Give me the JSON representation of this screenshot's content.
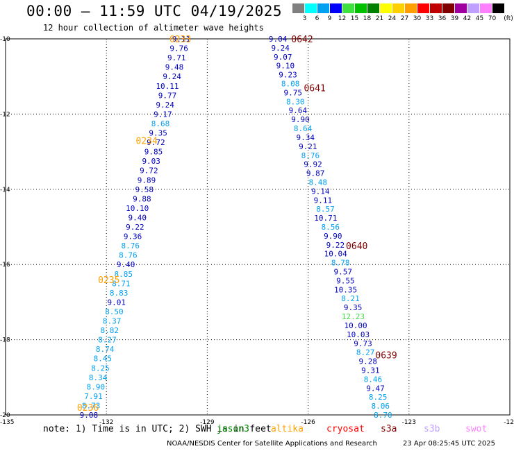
{
  "title": "00:00 – 11:59 UTC 04/19/2025",
  "subtitle": "12 hour collection of altimeter wave heights",
  "colorbar": {
    "bins": [
      {
        "label": "3",
        "color": "#808080"
      },
      {
        "label": "6",
        "color": "#00ffff"
      },
      {
        "label": "9",
        "color": "#00a0f0"
      },
      {
        "label": "12",
        "color": "#0000ff"
      },
      {
        "label": "15",
        "color": "#40e040"
      },
      {
        "label": "18",
        "color": "#00c000"
      },
      {
        "label": "21",
        "color": "#008000"
      },
      {
        "label": "24",
        "color": "#ffff00"
      },
      {
        "label": "27",
        "color": "#ffd000"
      },
      {
        "label": "30",
        "color": "#ffa000"
      },
      {
        "label": "33",
        "color": "#ff0000"
      },
      {
        "label": "36",
        "color": "#c00000"
      },
      {
        "label": "39",
        "color": "#800000"
      },
      {
        "label": "42",
        "color": "#a000a0"
      },
      {
        "label": "45",
        "color": "#c0a0ff"
      },
      {
        "label": "70",
        "color": "#ff80ff"
      },
      {
        "label": "",
        "color": "#000000"
      }
    ],
    "unit": "(ft)"
  },
  "map": {
    "lon_range": [
      -135,
      -123
    ],
    "lat_range": [
      -20,
      -10
    ],
    "lon_ticks": [
      "-135",
      "-132",
      "-129",
      "-126",
      "-123",
      "-12"
    ],
    "lat_ticks": [
      "-10",
      "-12",
      "-14",
      "-16",
      "-18",
      "-20"
    ],
    "track_a": {
      "pass_labels": [
        {
          "text": "0233",
          "lat": -10.0,
          "lon": -131.1
        },
        {
          "text": "0234",
          "lat": -12.7,
          "lon": -131.9
        },
        {
          "text": "0235",
          "lat": -16.4,
          "lon": -132.8
        },
        {
          "text": "0236",
          "lat": -19.8,
          "lon": -133.3
        }
      ],
      "values": [
        {
          "v": "9.11",
          "c": "#0000c0"
        },
        {
          "v": "9.76",
          "c": "#0000c0"
        },
        {
          "v": "9.71",
          "c": "#0000c0"
        },
        {
          "v": "9.48",
          "c": "#0000c0"
        },
        {
          "v": "9.24",
          "c": "#0000c0"
        },
        {
          "v": "10.11",
          "c": "#0000c0"
        },
        {
          "v": "9.77",
          "c": "#0000c0"
        },
        {
          "v": "9.24",
          "c": "#0000c0"
        },
        {
          "v": "9.17",
          "c": "#0000c0"
        },
        {
          "v": "8.68",
          "c": "#00a0f0"
        },
        {
          "v": "9.35",
          "c": "#0000c0"
        },
        {
          "v": "9.72",
          "c": "#0000c0"
        },
        {
          "v": "9.85",
          "c": "#0000c0"
        },
        {
          "v": "9.03",
          "c": "#0000c0"
        },
        {
          "v": "9.72",
          "c": "#0000c0"
        },
        {
          "v": "9.89",
          "c": "#0000c0"
        },
        {
          "v": "9.58",
          "c": "#0000c0"
        },
        {
          "v": "9.88",
          "c": "#0000c0"
        },
        {
          "v": "10.10",
          "c": "#0000c0"
        },
        {
          "v": "9.40",
          "c": "#0000c0"
        },
        {
          "v": "9.22",
          "c": "#0000c0"
        },
        {
          "v": "9.36",
          "c": "#0000c0"
        },
        {
          "v": "8.76",
          "c": "#00a0f0"
        },
        {
          "v": "8.76",
          "c": "#00a0f0"
        },
        {
          "v": "9.40",
          "c": "#0000c0"
        },
        {
          "v": "8.85",
          "c": "#00a0f0"
        },
        {
          "v": "8.71",
          "c": "#00a0f0"
        },
        {
          "v": "8.83",
          "c": "#00a0f0"
        },
        {
          "v": "9.01",
          "c": "#0000c0"
        },
        {
          "v": "8.50",
          "c": "#00a0f0"
        },
        {
          "v": "8.37",
          "c": "#00a0f0"
        },
        {
          "v": "8.82",
          "c": "#00a0f0"
        },
        {
          "v": "8.27",
          "c": "#00a0f0"
        },
        {
          "v": "8.74",
          "c": "#00a0f0"
        },
        {
          "v": "8.45",
          "c": "#00a0f0"
        },
        {
          "v": "8.25",
          "c": "#00a0f0"
        },
        {
          "v": "8.34",
          "c": "#00a0f0"
        },
        {
          "v": "8.90",
          "c": "#00a0f0"
        },
        {
          "v": "7.91",
          "c": "#00a0f0"
        },
        {
          "v": "8.73",
          "c": "#00a0f0"
        },
        {
          "v": "9.08",
          "c": "#0000c0"
        }
      ]
    },
    "track_b": {
      "pass_labels": [
        {
          "text": "0642",
          "lat": -10.0,
          "lon": -128.2
        },
        {
          "text": "0641",
          "lat": -11.3,
          "lon": -127.9
        },
        {
          "text": "0640",
          "lat": -15.5,
          "lon": -126.9
        },
        {
          "text": "0639",
          "lat": -18.4,
          "lon": -126.2
        }
      ],
      "values": [
        {
          "v": "9.04",
          "c": "#0000c0"
        },
        {
          "v": "9.24",
          "c": "#0000c0"
        },
        {
          "v": "9.07",
          "c": "#0000c0"
        },
        {
          "v": "9.10",
          "c": "#0000c0"
        },
        {
          "v": "9.23",
          "c": "#0000c0"
        },
        {
          "v": "8.08",
          "c": "#00a0f0"
        },
        {
          "v": "9.75",
          "c": "#0000c0"
        },
        {
          "v": "8.30",
          "c": "#00a0f0"
        },
        {
          "v": "9.64",
          "c": "#0000c0"
        },
        {
          "v": "9.90",
          "c": "#0000c0"
        },
        {
          "v": "8.64",
          "c": "#00a0f0"
        },
        {
          "v": "9.34",
          "c": "#0000c0"
        },
        {
          "v": "9.21",
          "c": "#0000c0"
        },
        {
          "v": "8.76",
          "c": "#00a0f0"
        },
        {
          "v": "9.92",
          "c": "#0000c0"
        },
        {
          "v": "9.87",
          "c": "#0000c0"
        },
        {
          "v": "8.48",
          "c": "#00a0f0"
        },
        {
          "v": "9.14",
          "c": "#0000c0"
        },
        {
          "v": "9.11",
          "c": "#0000c0"
        },
        {
          "v": "8.57",
          "c": "#00a0f0"
        },
        {
          "v": "10.71",
          "c": "#0000c0"
        },
        {
          "v": "8.56",
          "c": "#00a0f0"
        },
        {
          "v": "9.90",
          "c": "#0000c0"
        },
        {
          "v": "9.22",
          "c": "#0000c0"
        },
        {
          "v": "10.04",
          "c": "#0000c0"
        },
        {
          "v": "8.78",
          "c": "#00a0f0"
        },
        {
          "v": "9.57",
          "c": "#0000c0"
        },
        {
          "v": "9.55",
          "c": "#0000c0"
        },
        {
          "v": "10.35",
          "c": "#0000c0"
        },
        {
          "v": "8.21",
          "c": "#00a0f0"
        },
        {
          "v": "9.35",
          "c": "#0000c0"
        },
        {
          "v": "12.23",
          "c": "#40e040"
        },
        {
          "v": "10.00",
          "c": "#0000c0"
        },
        {
          "v": "10.03",
          "c": "#0000c0"
        },
        {
          "v": "9.73",
          "c": "#0000c0"
        },
        {
          "v": "8.27",
          "c": "#00a0f0"
        },
        {
          "v": "9.28",
          "c": "#0000c0"
        },
        {
          "v": "9.31",
          "c": "#0000c0"
        },
        {
          "v": "8.46",
          "c": "#00a0f0"
        },
        {
          "v": "9.47",
          "c": "#0000c0"
        },
        {
          "v": "8.25",
          "c": "#00a0f0"
        },
        {
          "v": "8.06",
          "c": "#00a0f0"
        },
        {
          "v": "8.70",
          "c": "#00a0f0"
        }
      ]
    }
  },
  "note": "note:  1) Time is in UTC; 2) SWH is in feet",
  "satellites": [
    {
      "name": "jason3",
      "color": "#008000"
    },
    {
      "name": "altika",
      "color": "#ffa000"
    },
    {
      "name": "cryosat",
      "color": "#ff0000"
    },
    {
      "name": "s3a",
      "color": "#800000"
    },
    {
      "name": "s3b",
      "color": "#c0a0ff"
    },
    {
      "name": "swot",
      "color": "#ff80ff"
    }
  ],
  "footer": "NOAA/NESDIS Center for Satellite Applications and Research",
  "timestamp": "23 Apr 08:25:45 UTC 2025"
}
